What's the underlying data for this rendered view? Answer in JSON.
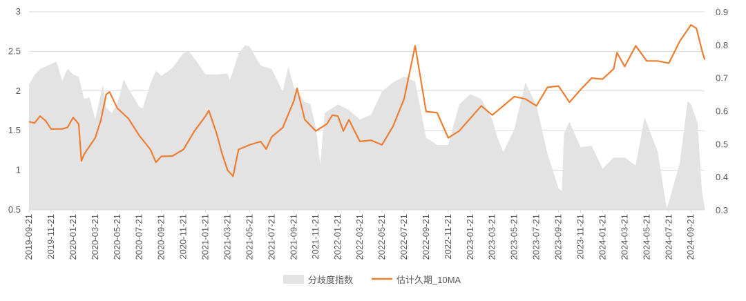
{
  "chart_data": {
    "type": "area+line",
    "title": "",
    "x_unit": "months since 2019-09-21",
    "x_tick_labels": [
      "2019-09-21",
      "2019-11-21",
      "2020-01-21",
      "2020-03-21",
      "2020-05-21",
      "2020-07-21",
      "2020-09-21",
      "2020-11-21",
      "2021-01-21",
      "2021-03-21",
      "2021-05-21",
      "2021-07-21",
      "2021-09-21",
      "2021-11-21",
      "2022-01-21",
      "2022-03-21",
      "2022-05-21",
      "2022-07-21",
      "2022-09-21",
      "2022-11-21",
      "2023-01-21",
      "2023-03-21",
      "2023-05-21",
      "2023-07-21",
      "2023-09-21",
      "2023-11-21",
      "2024-01-21",
      "2024-03-21",
      "2024-05-21",
      "2024-07-21",
      "2024-09-21"
    ],
    "x_range": [
      0,
      61.25
    ],
    "y_left": {
      "range": [
        0.5,
        3
      ],
      "ticks": [
        "0.5",
        "1",
        "1.5",
        "2",
        "2.5",
        "3"
      ]
    },
    "y_right": {
      "range": [
        0.3,
        0.9
      ],
      "ticks": [
        "0.3",
        "0.4",
        "0.5",
        "0.6",
        "0.7",
        "0.8",
        "0.9"
      ]
    },
    "grid": true,
    "legend_position": "bottom",
    "series": [
      {
        "name": "分歧度指数",
        "kind": "area",
        "axis": "left",
        "color": "#e3e3e3",
        "points": [
          [
            0,
            2.08
          ],
          [
            0.5,
            2.2
          ],
          [
            1,
            2.28
          ],
          [
            2,
            2.34
          ],
          [
            2.5,
            2.37
          ],
          [
            3,
            2.13
          ],
          [
            3.5,
            2.28
          ],
          [
            4,
            2.21
          ],
          [
            4.5,
            2.18
          ],
          [
            5,
            1.9
          ],
          [
            5.5,
            1.92
          ],
          [
            6,
            1.64
          ],
          [
            6.7,
            2.08
          ],
          [
            7,
            1.79
          ],
          [
            7.5,
            1.72
          ],
          [
            8,
            1.84
          ],
          [
            8.6,
            2.15
          ],
          [
            9,
            2.03
          ],
          [
            10,
            1.8
          ],
          [
            10.3,
            1.78
          ],
          [
            11,
            2.09
          ],
          [
            11.5,
            2.26
          ],
          [
            12,
            2.19
          ],
          [
            13,
            2.29
          ],
          [
            14,
            2.48
          ],
          [
            14.5,
            2.5
          ],
          [
            15,
            2.41
          ],
          [
            16,
            2.21
          ],
          [
            17,
            2.21
          ],
          [
            18,
            2.22
          ],
          [
            18.2,
            2.13
          ],
          [
            19,
            2.47
          ],
          [
            19.6,
            2.58
          ],
          [
            20,
            2.56
          ],
          [
            21,
            2.32
          ],
          [
            22,
            2.28
          ],
          [
            23,
            1.99
          ],
          [
            23.5,
            2.31
          ],
          [
            24,
            2.05
          ],
          [
            25,
            1.86
          ],
          [
            25.5,
            1.84
          ],
          [
            26,
            1.54
          ],
          [
            26.4,
            1.07
          ],
          [
            26.8,
            1.72
          ],
          [
            27,
            1.74
          ],
          [
            28,
            1.83
          ],
          [
            29,
            1.76
          ],
          [
            30,
            1.64
          ],
          [
            31,
            1.7
          ],
          [
            32,
            1.99
          ],
          [
            33,
            2.11
          ],
          [
            34,
            2.18
          ],
          [
            35,
            2.12
          ],
          [
            36,
            1.41
          ],
          [
            37,
            1.32
          ],
          [
            38,
            1.32
          ],
          [
            39,
            1.83
          ],
          [
            40,
            1.96
          ],
          [
            41,
            1.9
          ],
          [
            42,
            1.64
          ],
          [
            42.5,
            1.4
          ],
          [
            43,
            1.23
          ],
          [
            44,
            1.52
          ],
          [
            45,
            2.11
          ],
          [
            46,
            1.82
          ],
          [
            47,
            1.21
          ],
          [
            48,
            0.77
          ],
          [
            48.3,
            0.74
          ],
          [
            48.5,
            1.47
          ],
          [
            49,
            1.61
          ],
          [
            50,
            1.29
          ],
          [
            51,
            1.31
          ],
          [
            52,
            1.02
          ],
          [
            53,
            1.16
          ],
          [
            54,
            1.16
          ],
          [
            55,
            1.06
          ],
          [
            55.8,
            1.67
          ],
          [
            56,
            1.6
          ],
          [
            57,
            1.23
          ],
          [
            57.8,
            0.52
          ],
          [
            58,
            0.6
          ],
          [
            59,
            1.09
          ],
          [
            59.7,
            1.87
          ],
          [
            60,
            1.84
          ],
          [
            60.6,
            1.6
          ],
          [
            61,
            0.74
          ],
          [
            61.25,
            0.52
          ]
        ]
      },
      {
        "name": "估计久期_10MA",
        "kind": "line",
        "axis": "right",
        "color": "#ed7d31",
        "points": [
          [
            0,
            0.567
          ],
          [
            0.5,
            0.563
          ],
          [
            1,
            0.584
          ],
          [
            1.5,
            0.57
          ],
          [
            2,
            0.545
          ],
          [
            3,
            0.545
          ],
          [
            3.5,
            0.55
          ],
          [
            4,
            0.58
          ],
          [
            4.5,
            0.56
          ],
          [
            4.75,
            0.448
          ],
          [
            5,
            0.469
          ],
          [
            6,
            0.518
          ],
          [
            6.5,
            0.57
          ],
          [
            7,
            0.65
          ],
          [
            7.3,
            0.657
          ],
          [
            8,
            0.608
          ],
          [
            9,
            0.577
          ],
          [
            10,
            0.525
          ],
          [
            11,
            0.483
          ],
          [
            11.5,
            0.444
          ],
          [
            12,
            0.462
          ],
          [
            13,
            0.463
          ],
          [
            14,
            0.483
          ],
          [
            15,
            0.539
          ],
          [
            16,
            0.584
          ],
          [
            16.3,
            0.601
          ],
          [
            17,
            0.532
          ],
          [
            17.5,
            0.47
          ],
          [
            18,
            0.42
          ],
          [
            18.5,
            0.402
          ],
          [
            19,
            0.483
          ],
          [
            20,
            0.497
          ],
          [
            21,
            0.507
          ],
          [
            21.5,
            0.484
          ],
          [
            22,
            0.521
          ],
          [
            23,
            0.549
          ],
          [
            24,
            0.629
          ],
          [
            24.3,
            0.668
          ],
          [
            25,
            0.573
          ],
          [
            26,
            0.539
          ],
          [
            27,
            0.56
          ],
          [
            27.5,
            0.587
          ],
          [
            28,
            0.584
          ],
          [
            28.5,
            0.539
          ],
          [
            29,
            0.573
          ],
          [
            30,
            0.507
          ],
          [
            31,
            0.511
          ],
          [
            32,
            0.497
          ],
          [
            33,
            0.553
          ],
          [
            34,
            0.636
          ],
          [
            35,
            0.797
          ],
          [
            36,
            0.598
          ],
          [
            37,
            0.594
          ],
          [
            38,
            0.518
          ],
          [
            39,
            0.539
          ],
          [
            40,
            0.577
          ],
          [
            41,
            0.615
          ],
          [
            42,
            0.587
          ],
          [
            43,
            0.615
          ],
          [
            44,
            0.643
          ],
          [
            45,
            0.636
          ],
          [
            46,
            0.615
          ],
          [
            47,
            0.671
          ],
          [
            48,
            0.675
          ],
          [
            49,
            0.626
          ],
          [
            50,
            0.664
          ],
          [
            51,
            0.699
          ],
          [
            52,
            0.696
          ],
          [
            53,
            0.727
          ],
          [
            53.3,
            0.776
          ],
          [
            54,
            0.734
          ],
          [
            55,
            0.797
          ],
          [
            56,
            0.751
          ],
          [
            57,
            0.751
          ],
          [
            58,
            0.744
          ],
          [
            59,
            0.811
          ],
          [
            60,
            0.86
          ],
          [
            60.5,
            0.85
          ],
          [
            61,
            0.783
          ],
          [
            61.25,
            0.755
          ]
        ]
      }
    ]
  }
}
